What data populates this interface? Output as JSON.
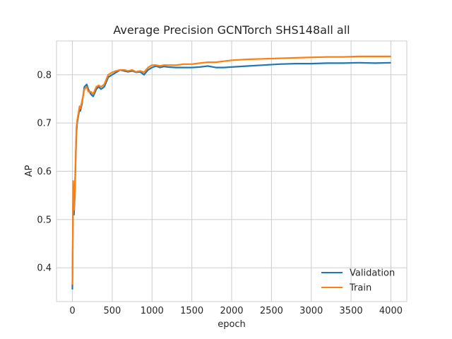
{
  "chart_data": {
    "type": "line",
    "title": "Average Precision GCNTorch SHS148all all",
    "xlabel": "epoch",
    "ylabel": "AP",
    "xlim": [
      -200,
      4200
    ],
    "ylim": [
      0.33,
      0.87
    ],
    "xticks": [
      0,
      500,
      1000,
      1500,
      2000,
      2500,
      3000,
      3500,
      4000
    ],
    "yticks": [
      0.4,
      0.5,
      0.6,
      0.7,
      0.8
    ],
    "grid": true,
    "legend_position": "bottom-right",
    "series": [
      {
        "name": "Validation",
        "color": "#1f77b4",
        "x": [
          0,
          10,
          20,
          30,
          40,
          50,
          60,
          70,
          80,
          90,
          100,
          120,
          150,
          180,
          200,
          230,
          260,
          300,
          330,
          360,
          400,
          450,
          500,
          550,
          600,
          650,
          700,
          750,
          800,
          850,
          900,
          950,
          1000,
          1050,
          1100,
          1150,
          1200,
          1300,
          1400,
          1500,
          1600,
          1700,
          1800,
          1900,
          2000,
          2200,
          2400,
          2600,
          2800,
          3000,
          3200,
          3400,
          3600,
          3800,
          4000
        ],
        "y": [
          0.355,
          0.57,
          0.51,
          0.55,
          0.62,
          0.68,
          0.7,
          0.71,
          0.72,
          0.73,
          0.725,
          0.74,
          0.775,
          0.78,
          0.77,
          0.76,
          0.755,
          0.77,
          0.775,
          0.77,
          0.775,
          0.795,
          0.8,
          0.805,
          0.81,
          0.808,
          0.806,
          0.808,
          0.805,
          0.806,
          0.8,
          0.81,
          0.815,
          0.818,
          0.815,
          0.817,
          0.816,
          0.815,
          0.815,
          0.815,
          0.816,
          0.818,
          0.815,
          0.815,
          0.816,
          0.818,
          0.82,
          0.822,
          0.823,
          0.823,
          0.824,
          0.824,
          0.825,
          0.824,
          0.825
        ]
      },
      {
        "name": "Train",
        "color": "#ff7f0e",
        "x": [
          0,
          10,
          20,
          30,
          40,
          50,
          60,
          70,
          80,
          90,
          100,
          120,
          150,
          180,
          200,
          230,
          260,
          300,
          330,
          360,
          400,
          450,
          500,
          550,
          600,
          650,
          700,
          750,
          800,
          850,
          900,
          950,
          1000,
          1050,
          1100,
          1150,
          1200,
          1300,
          1400,
          1500,
          1600,
          1700,
          1800,
          1900,
          2000,
          2200,
          2400,
          2600,
          2800,
          3000,
          3200,
          3400,
          3600,
          3800,
          4000
        ],
        "y": [
          0.365,
          0.58,
          0.52,
          0.56,
          0.63,
          0.69,
          0.705,
          0.715,
          0.725,
          0.735,
          0.73,
          0.745,
          0.77,
          0.775,
          0.765,
          0.765,
          0.76,
          0.775,
          0.778,
          0.775,
          0.78,
          0.8,
          0.805,
          0.808,
          0.81,
          0.81,
          0.808,
          0.81,
          0.806,
          0.808,
          0.805,
          0.815,
          0.82,
          0.82,
          0.818,
          0.82,
          0.82,
          0.82,
          0.822,
          0.822,
          0.824,
          0.826,
          0.826,
          0.828,
          0.83,
          0.832,
          0.833,
          0.834,
          0.835,
          0.836,
          0.837,
          0.837,
          0.838,
          0.838,
          0.838
        ]
      }
    ]
  }
}
